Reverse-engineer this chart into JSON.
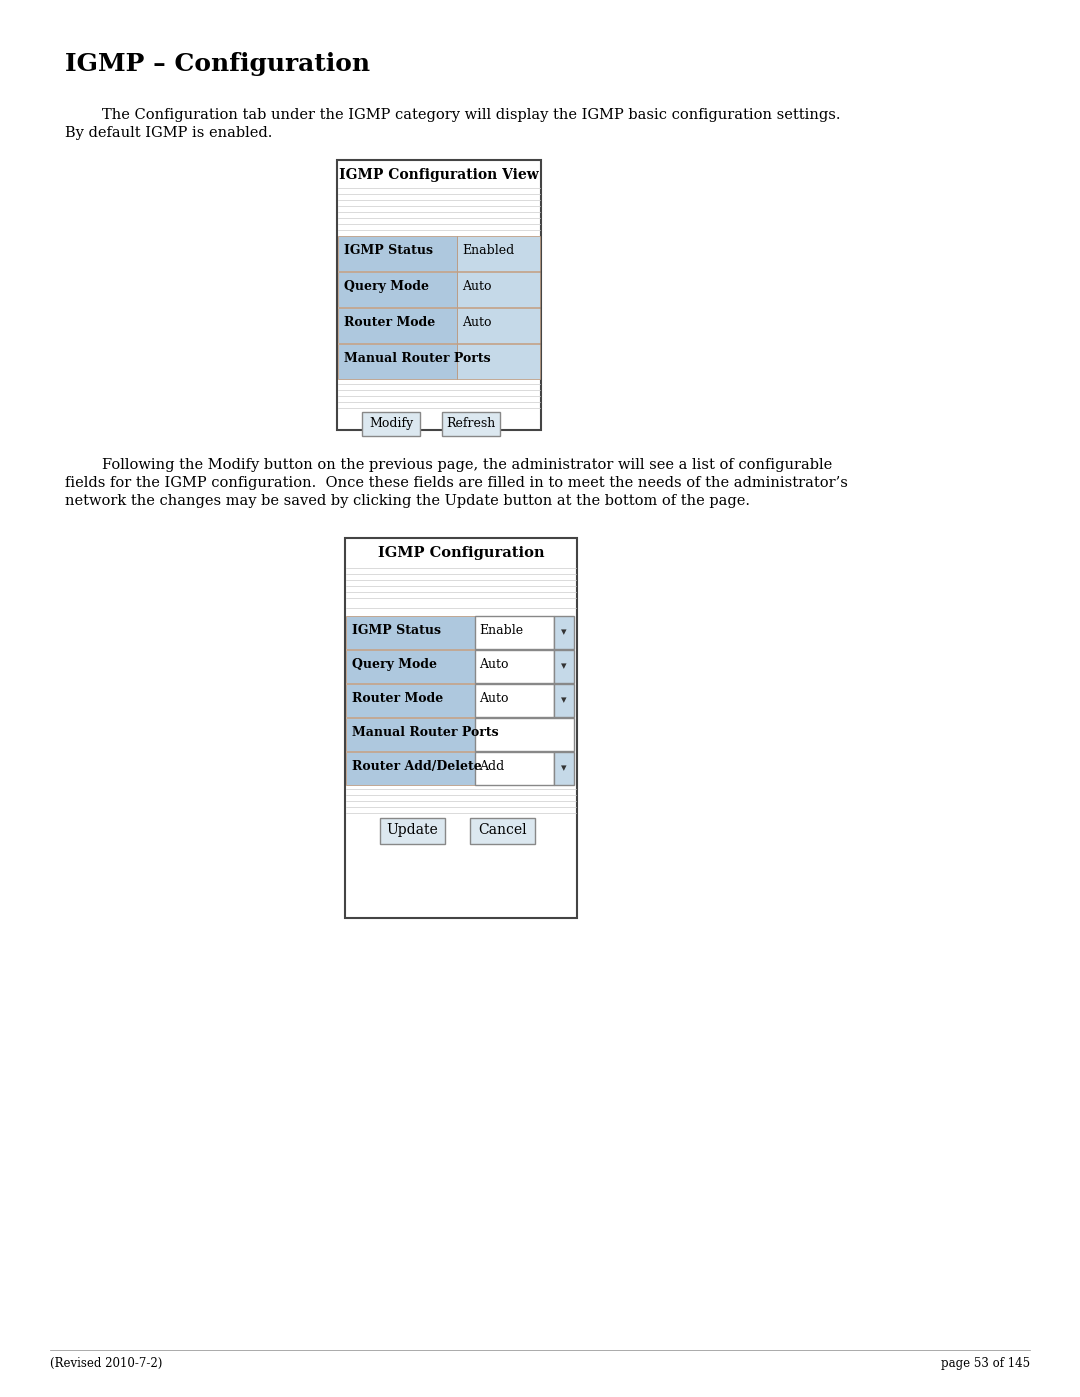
{
  "title": "IGMP – Configuration",
  "body_fontsize": 10.5,
  "page_bg": "#ffffff",
  "text_color": "#000000",
  "para1_line1": "        The Configuration tab under the IGMP category will display the IGMP basic configuration settings.",
  "para1_line2": "By default IGMP is enabled.",
  "para2_line1": "        Following the Modify button on the previous page, the administrator will see a list of configurable",
  "para2_line2": "fields for the IGMP configuration.  Once these fields are filled in to meet the needs of the administrator’s",
  "para2_line3": "network the changes may be saved by clicking the Update button at the bottom of the page.",
  "footer_left": "(Revised 2010-7-2)",
  "footer_right": "page 53 of 145",
  "table1_title": "IGMP Configuration View",
  "table1_rows": [
    [
      "IGMP Status",
      "Enabled"
    ],
    [
      "Query Mode",
      "Auto"
    ],
    [
      "Router Mode",
      "Auto"
    ],
    [
      "Manual Router Ports",
      ""
    ]
  ],
  "table1_btn1": "Modify",
  "table1_btn2": "Refresh",
  "table2_title": "IGMP Configuration",
  "table2_rows": [
    [
      "IGMP Status",
      "Enable"
    ],
    [
      "Query Mode",
      "Auto"
    ],
    [
      "Router Mode",
      "Auto"
    ],
    [
      "Manual Router Ports",
      ""
    ],
    [
      "Router Add/Delete",
      "Add"
    ]
  ],
  "table2_btn1": "Update",
  "table2_btn2": "Cancel",
  "cell_bg": "#aec8de",
  "cell_bg2": "#c5d9e8",
  "table_border": "#444444",
  "row_divider": "#b89070",
  "btn_bg": "#dce8f0",
  "btn_border": "#888888",
  "dropdown_bg": "#ddeeff",
  "white": "#ffffff",
  "line_color": "#aaaaaa"
}
